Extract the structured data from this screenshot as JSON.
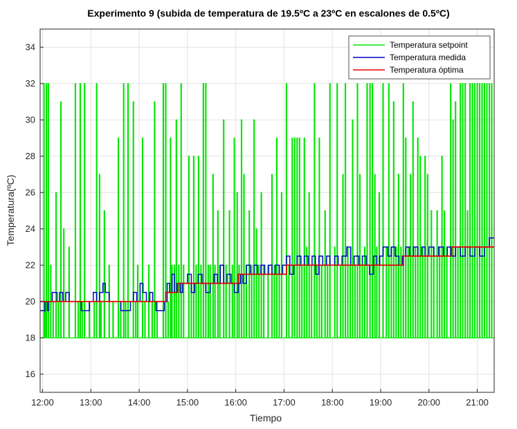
{
  "chart_data": {
    "type": "line",
    "title": "Experimento 9 (subida de temperatura de 19.5ºC a 23ºC en escalones de 0.5ºC)",
    "xlabel": "Tiempo",
    "ylabel": "Temperatura(ºC)",
    "x_tick_labels": [
      "12:00",
      "13:00",
      "14:00",
      "15:00",
      "16:00",
      "17:00",
      "18:00",
      "19:00",
      "20:00",
      "21:00"
    ],
    "x_tick_hours": [
      12,
      13,
      14,
      15,
      16,
      17,
      18,
      19,
      20,
      21
    ],
    "xlim": [
      11.95,
      21.35
    ],
    "y_ticks": [
      16,
      18,
      20,
      22,
      24,
      26,
      28,
      30,
      32,
      34
    ],
    "ylim": [
      15,
      35
    ],
    "grid": true,
    "legend_position": "top-right",
    "colors": {
      "setpoint": "#00e600",
      "medida": "#0000cc",
      "optima": "#e60000"
    },
    "series": [
      {
        "name": "Temperatura setpoint",
        "key": "setpoint",
        "base": 18,
        "pulses": [
          [
            12.03,
            32
          ],
          [
            12.06,
            20
          ],
          [
            12.08,
            32
          ],
          [
            12.12,
            32
          ],
          [
            12.17,
            22
          ],
          [
            12.22,
            20
          ],
          [
            12.28,
            26
          ],
          [
            12.33,
            20
          ],
          [
            12.38,
            31
          ],
          [
            12.44,
            24
          ],
          [
            12.55,
            23
          ],
          [
            12.68,
            32
          ],
          [
            12.74,
            20
          ],
          [
            12.78,
            32
          ],
          [
            12.82,
            20
          ],
          [
            12.87,
            32
          ],
          [
            12.97,
            20
          ],
          [
            13.07,
            20
          ],
          [
            13.12,
            32
          ],
          [
            13.18,
            27
          ],
          [
            13.21,
            20
          ],
          [
            13.28,
            25
          ],
          [
            13.38,
            22
          ],
          [
            13.46,
            20
          ],
          [
            13.57,
            29
          ],
          [
            13.62,
            20
          ],
          [
            13.68,
            32
          ],
          [
            13.72,
            20
          ],
          [
            13.77,
            32
          ],
          [
            13.88,
            31
          ],
          [
            13.93,
            20
          ],
          [
            13.97,
            22
          ],
          [
            14.07,
            29
          ],
          [
            14.12,
            20
          ],
          [
            14.2,
            22
          ],
          [
            14.27,
            20
          ],
          [
            14.32,
            31
          ],
          [
            14.37,
            20
          ],
          [
            14.5,
            32
          ],
          [
            14.55,
            32
          ],
          [
            14.6,
            20
          ],
          [
            14.65,
            29
          ],
          [
            14.68,
            22
          ],
          [
            14.73,
            22
          ],
          [
            14.77,
            30
          ],
          [
            14.82,
            22
          ],
          [
            14.87,
            32
          ],
          [
            14.92,
            22
          ],
          [
            15.03,
            28
          ],
          [
            15.08,
            21
          ],
          [
            15.13,
            28
          ],
          [
            15.18,
            22
          ],
          [
            15.23,
            28
          ],
          [
            15.28,
            22
          ],
          [
            15.33,
            32
          ],
          [
            15.38,
            32
          ],
          [
            15.43,
            22
          ],
          [
            15.47,
            22
          ],
          [
            15.53,
            27
          ],
          [
            15.57,
            22
          ],
          [
            15.63,
            25
          ],
          [
            15.67,
            22
          ],
          [
            15.75,
            30
          ],
          [
            15.8,
            22
          ],
          [
            15.87,
            25
          ],
          [
            15.93,
            22
          ],
          [
            15.97,
            29
          ],
          [
            16.03,
            26
          ],
          [
            16.07,
            22
          ],
          [
            16.12,
            30
          ],
          [
            16.17,
            27
          ],
          [
            16.22,
            22
          ],
          [
            16.28,
            25
          ],
          [
            16.33,
            22
          ],
          [
            16.38,
            30
          ],
          [
            16.43,
            24
          ],
          [
            16.48,
            22
          ],
          [
            16.53,
            26
          ],
          [
            16.58,
            22
          ],
          [
            16.67,
            22
          ],
          [
            16.75,
            27
          ],
          [
            16.8,
            22
          ],
          [
            16.85,
            29
          ],
          [
            16.9,
            22
          ],
          [
            16.95,
            26
          ],
          [
            17.05,
            32
          ],
          [
            17.1,
            22
          ],
          [
            17.17,
            29
          ],
          [
            17.22,
            29
          ],
          [
            17.27,
            29
          ],
          [
            17.32,
            29
          ],
          [
            17.37,
            22
          ],
          [
            17.42,
            29
          ],
          [
            17.47,
            23
          ],
          [
            17.52,
            26
          ],
          [
            17.57,
            22
          ],
          [
            17.63,
            32
          ],
          [
            17.68,
            22
          ],
          [
            17.73,
            29
          ],
          [
            17.78,
            22
          ],
          [
            17.85,
            25
          ],
          [
            17.9,
            22
          ],
          [
            17.95,
            32
          ],
          [
            18.05,
            23
          ],
          [
            18.1,
            32
          ],
          [
            18.17,
            22
          ],
          [
            18.22,
            27
          ],
          [
            18.27,
            32
          ],
          [
            18.32,
            23
          ],
          [
            18.37,
            22
          ],
          [
            18.42,
            30
          ],
          [
            18.47,
            22
          ],
          [
            18.52,
            32
          ],
          [
            18.57,
            27
          ],
          [
            18.62,
            22
          ],
          [
            18.67,
            23
          ],
          [
            18.72,
            32
          ],
          [
            18.78,
            32
          ],
          [
            18.83,
            32
          ],
          [
            18.88,
            27
          ],
          [
            18.92,
            23
          ],
          [
            18.97,
            26
          ],
          [
            19.05,
            32
          ],
          [
            19.12,
            23
          ],
          [
            19.17,
            32
          ],
          [
            19.22,
            23
          ],
          [
            19.27,
            31
          ],
          [
            19.32,
            23
          ],
          [
            19.37,
            27
          ],
          [
            19.42,
            23
          ],
          [
            19.47,
            32
          ],
          [
            19.52,
            29
          ],
          [
            19.57,
            23
          ],
          [
            19.62,
            27
          ],
          [
            19.67,
            31
          ],
          [
            19.72,
            23
          ],
          [
            19.77,
            29
          ],
          [
            19.82,
            28
          ],
          [
            19.87,
            23
          ],
          [
            19.92,
            28
          ],
          [
            19.97,
            27
          ],
          [
            20.05,
            25
          ],
          [
            20.1,
            23
          ],
          [
            20.17,
            25
          ],
          [
            20.22,
            23
          ],
          [
            20.27,
            28
          ],
          [
            20.32,
            25
          ],
          [
            20.37,
            23
          ],
          [
            20.45,
            32
          ],
          [
            20.5,
            30
          ],
          [
            20.55,
            31
          ],
          [
            20.6,
            23
          ],
          [
            20.65,
            32
          ],
          [
            20.7,
            32
          ],
          [
            20.75,
            32
          ],
          [
            20.8,
            25
          ],
          [
            20.85,
            32
          ],
          [
            20.9,
            32
          ],
          [
            20.95,
            32
          ],
          [
            21.0,
            32
          ],
          [
            21.05,
            32
          ],
          [
            21.1,
            32
          ],
          [
            21.15,
            32
          ],
          [
            21.2,
            32
          ],
          [
            21.25,
            32
          ],
          [
            21.3,
            32
          ]
        ],
        "dips": [
          [
            20.9,
            18
          ],
          [
            21.0,
            18
          ],
          [
            21.1,
            18
          ]
        ]
      },
      {
        "name": "Temperatura medida",
        "key": "medida",
        "steps": [
          [
            11.95,
            19.5
          ],
          [
            12.05,
            20
          ],
          [
            12.1,
            19.5
          ],
          [
            12.13,
            20
          ],
          [
            12.2,
            20.5
          ],
          [
            12.3,
            20
          ],
          [
            12.35,
            20.5
          ],
          [
            12.42,
            20
          ],
          [
            12.48,
            20.5
          ],
          [
            12.55,
            20
          ],
          [
            12.62,
            20
          ],
          [
            12.7,
            20
          ],
          [
            12.8,
            19.5
          ],
          [
            12.97,
            20
          ],
          [
            13.05,
            20.5
          ],
          [
            13.12,
            20
          ],
          [
            13.18,
            20.5
          ],
          [
            13.25,
            21
          ],
          [
            13.3,
            20.5
          ],
          [
            13.38,
            20
          ],
          [
            13.45,
            20
          ],
          [
            13.55,
            20
          ],
          [
            13.62,
            19.5
          ],
          [
            13.82,
            20
          ],
          [
            13.88,
            20.5
          ],
          [
            13.95,
            20
          ],
          [
            14.02,
            21
          ],
          [
            14.08,
            20.5
          ],
          [
            14.15,
            20
          ],
          [
            14.22,
            20.5
          ],
          [
            14.28,
            20
          ],
          [
            14.35,
            19.5
          ],
          [
            14.52,
            20
          ],
          [
            14.58,
            21
          ],
          [
            14.63,
            20.5
          ],
          [
            14.68,
            21.5
          ],
          [
            14.73,
            20.5
          ],
          [
            14.78,
            21
          ],
          [
            14.85,
            20.5
          ],
          [
            14.9,
            21
          ],
          [
            15.0,
            21.5
          ],
          [
            15.08,
            20.5
          ],
          [
            15.15,
            21
          ],
          [
            15.22,
            21.5
          ],
          [
            15.3,
            21
          ],
          [
            15.38,
            20.5
          ],
          [
            15.47,
            21
          ],
          [
            15.55,
            21.5
          ],
          [
            15.62,
            21
          ],
          [
            15.68,
            22
          ],
          [
            15.75,
            21
          ],
          [
            15.82,
            21.5
          ],
          [
            15.9,
            21
          ],
          [
            15.97,
            20.5
          ],
          [
            16.05,
            21
          ],
          [
            16.1,
            21.5
          ],
          [
            16.15,
            21
          ],
          [
            16.22,
            22
          ],
          [
            16.3,
            21.5
          ],
          [
            16.38,
            22
          ],
          [
            16.45,
            21.5
          ],
          [
            16.52,
            22
          ],
          [
            16.6,
            21.5
          ],
          [
            16.68,
            22
          ],
          [
            16.75,
            21.5
          ],
          [
            16.82,
            22
          ],
          [
            16.9,
            21.5
          ],
          [
            16.97,
            22
          ],
          [
            17.05,
            22.5
          ],
          [
            17.12,
            21.5
          ],
          [
            17.2,
            22
          ],
          [
            17.27,
            22.5
          ],
          [
            17.35,
            22
          ],
          [
            17.42,
            22.5
          ],
          [
            17.5,
            22
          ],
          [
            17.58,
            22.5
          ],
          [
            17.65,
            21.5
          ],
          [
            17.72,
            22.5
          ],
          [
            17.8,
            22
          ],
          [
            17.88,
            22.5
          ],
          [
            17.95,
            22
          ],
          [
            18.05,
            22.5
          ],
          [
            18.12,
            22
          ],
          [
            18.2,
            22.5
          ],
          [
            18.3,
            23
          ],
          [
            18.38,
            22
          ],
          [
            18.45,
            22.5
          ],
          [
            18.55,
            22
          ],
          [
            18.62,
            22.5
          ],
          [
            18.7,
            22
          ],
          [
            18.77,
            21.5
          ],
          [
            18.85,
            22.5
          ],
          [
            18.92,
            22
          ],
          [
            18.98,
            22.5
          ],
          [
            19.05,
            23
          ],
          [
            19.15,
            22.5
          ],
          [
            19.22,
            23
          ],
          [
            19.3,
            22.5
          ],
          [
            19.38,
            22
          ],
          [
            19.45,
            22.5
          ],
          [
            19.52,
            23
          ],
          [
            19.6,
            22.5
          ],
          [
            19.68,
            23
          ],
          [
            19.77,
            22.5
          ],
          [
            19.85,
            23
          ],
          [
            19.92,
            22.5
          ],
          [
            20.0,
            23
          ],
          [
            20.1,
            22.5
          ],
          [
            20.2,
            23
          ],
          [
            20.3,
            22.5
          ],
          [
            20.38,
            23
          ],
          [
            20.45,
            22.5
          ],
          [
            20.55,
            23
          ],
          [
            20.65,
            22.5
          ],
          [
            20.75,
            23
          ],
          [
            20.85,
            22.5
          ],
          [
            20.95,
            23
          ],
          [
            21.05,
            22.5
          ],
          [
            21.15,
            23
          ],
          [
            21.25,
            23.5
          ],
          [
            21.35,
            23.5
          ]
        ]
      },
      {
        "name": "Temperatura óptima",
        "key": "optima",
        "steps": [
          [
            11.95,
            20
          ],
          [
            14.55,
            20.5
          ],
          [
            14.8,
            21
          ],
          [
            16.05,
            21.5
          ],
          [
            17.05,
            22
          ],
          [
            19.47,
            22.5
          ],
          [
            19.55,
            22.5
          ],
          [
            20.47,
            23
          ],
          [
            21.35,
            23
          ]
        ]
      }
    ]
  }
}
